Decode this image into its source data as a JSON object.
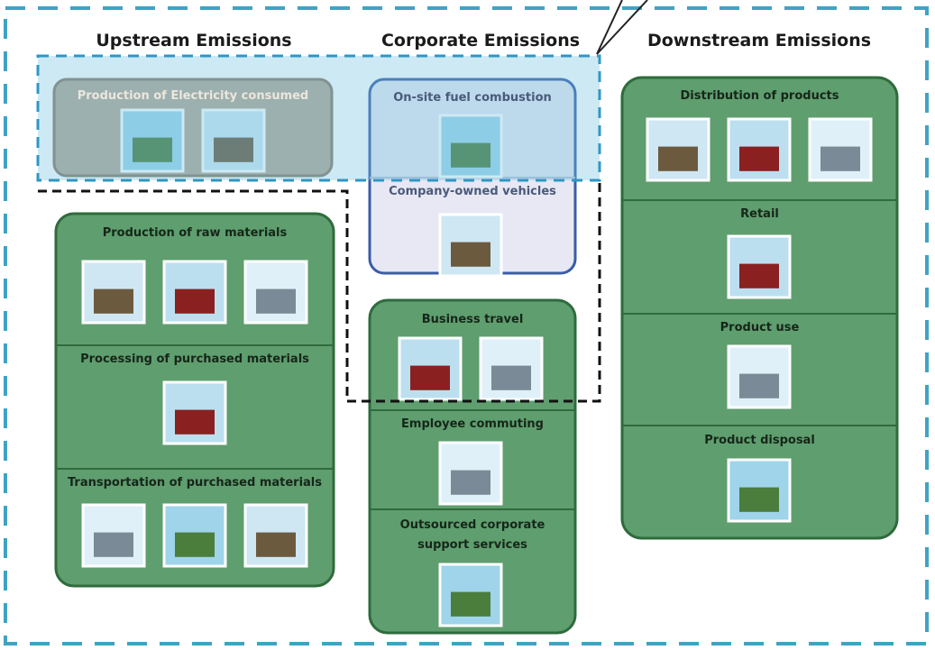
{
  "headings": [
    "Upstream Emissions",
    "Corporate Emissions",
    "Downstream Emissions"
  ],
  "sections": [
    {
      "label": "Production of Electricity consumed"
    },
    {
      "label": "Production of raw materials"
    },
    {
      "label": "Processing of purchased materials"
    },
    {
      "label": "Transportation of purchased materials"
    },
    {
      "label": "On-site fuel combustion"
    },
    {
      "label": "Company-owned vehicles"
    },
    {
      "label": "Business travel"
    },
    {
      "label": "Employee commuting"
    },
    {
      "label": "Outsourced corporate support services"
    },
    {
      "label": "Distribution of products"
    },
    {
      "label": "Retail"
    },
    {
      "label": "Product use"
    },
    {
      "label": "Product disposal"
    }
  ]
}
